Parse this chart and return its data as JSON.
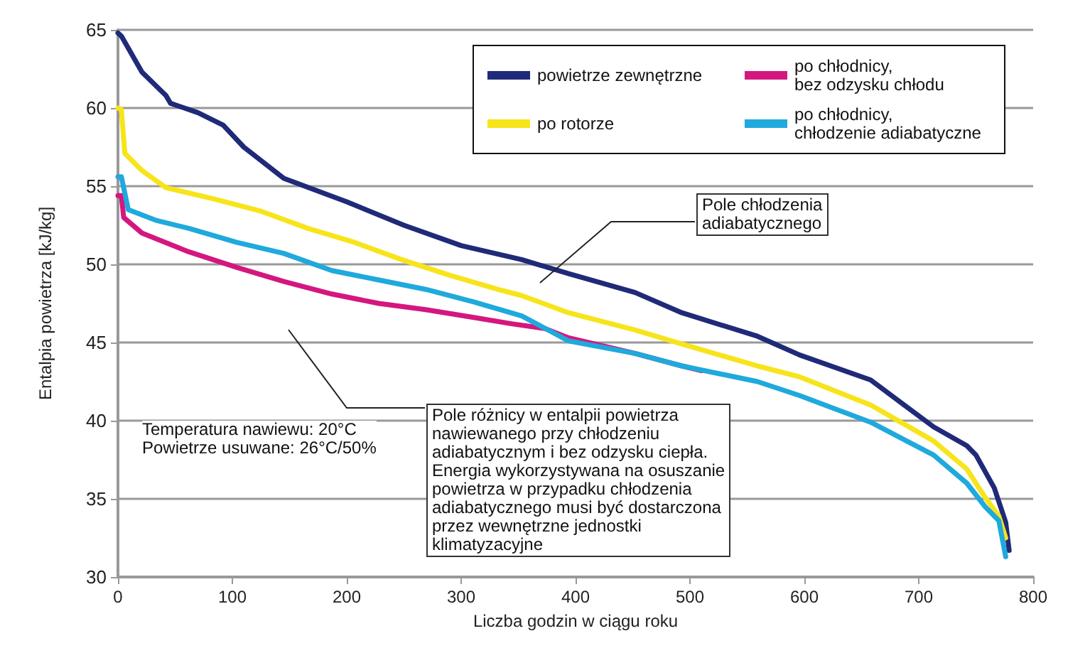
{
  "chart_data": {
    "type": "line",
    "xlabel": "Liczba godzin w ciągu roku",
    "ylabel": "Entalpia powietrza [kJ/kg]",
    "xlim": [
      0,
      800
    ],
    "xticks": [
      0,
      100,
      200,
      300,
      400,
      500,
      600,
      700,
      800
    ],
    "ylim": [
      30,
      65
    ],
    "yticks": [
      30,
      35,
      40,
      45,
      50,
      55,
      60,
      65
    ],
    "grid": "y",
    "legend": "top right",
    "marker": "none",
    "line_style": "solid",
    "series": [
      {
        "name": "powietrze zewnętrzne",
        "color": "#1f2a78",
        "x": [
          0,
          3,
          21,
          42,
          46,
          70,
          92,
          110,
          145,
          200,
          250,
          300,
          353,
          394,
          452,
          493,
          559,
          596,
          658,
          713,
          742,
          750,
          766,
          776,
          779
        ],
        "values": [
          64.8,
          64.6,
          62.3,
          60.8,
          60.3,
          59.7,
          58.9,
          57.5,
          55.5,
          54.0,
          52.5,
          51.2,
          50.3,
          49.4,
          48.2,
          46.9,
          45.4,
          44.2,
          42.6,
          39.6,
          38.4,
          37.8,
          35.7,
          33.5,
          31.7
        ]
      },
      {
        "name": "po chłodnicy,\nbez odzysku chłodu",
        "color": "#d4177f",
        "x": [
          0,
          3,
          5,
          21,
          62,
          104,
          145,
          187,
          228,
          269,
          311,
          344,
          373,
          394,
          452,
          493,
          510
        ],
        "values": [
          54.4,
          54.4,
          53.0,
          52.0,
          50.8,
          49.8,
          48.9,
          48.1,
          47.5,
          47.1,
          46.6,
          46.2,
          45.9,
          45.3,
          44.3,
          43.5,
          43.2
        ]
      },
      {
        "name": "po rotorze",
        "color": "#f7e41a",
        "x": [
          0,
          3,
          6,
          21,
          42,
          83,
          125,
          166,
          207,
          248,
          290,
          332,
          353,
          394,
          452,
          493,
          559,
          596,
          658,
          713,
          742,
          758,
          770,
          776
        ],
        "values": [
          60.0,
          59.9,
          57.1,
          56.0,
          54.9,
          54.2,
          53.4,
          52.3,
          51.4,
          50.3,
          49.3,
          48.4,
          48.0,
          46.9,
          45.8,
          44.9,
          43.5,
          42.8,
          41.0,
          38.7,
          36.9,
          35.1,
          33.9,
          32.5
        ]
      },
      {
        "name": "po chłodnicy,\nchłodzenie adiabatyczne",
        "color": "#1fa9dc",
        "x": [
          0,
          3,
          9,
          34,
          62,
          104,
          145,
          187,
          228,
          269,
          311,
          353,
          394,
          452,
          493,
          559,
          596,
          658,
          713,
          742,
          758,
          770,
          776
        ],
        "values": [
          55.6,
          55.6,
          53.5,
          52.8,
          52.3,
          51.4,
          50.7,
          49.6,
          49.0,
          48.4,
          47.6,
          46.7,
          45.1,
          44.3,
          43.5,
          42.5,
          41.6,
          39.9,
          37.8,
          36.0,
          34.5,
          33.6,
          31.3
        ]
      }
    ],
    "annotations": [
      "Pole chłodzenia\nadiabatycznego",
      "Pole różnicy w entalpii powietrza\nnawiewanego przy chłodzeniu\nadiabatycznym i bez odzysku ciepła.\nEnergia wykorzystywana na osuszanie\npowietrza w przypadku chłodzenia\nadiabatycznego musi być dostarczona\nprzez wewnętrzne jednostki\nklimatyzacyjne",
      "Temperatura nawiewu: 20°C\nPowietrze usuwane: 26°C/50%"
    ]
  }
}
